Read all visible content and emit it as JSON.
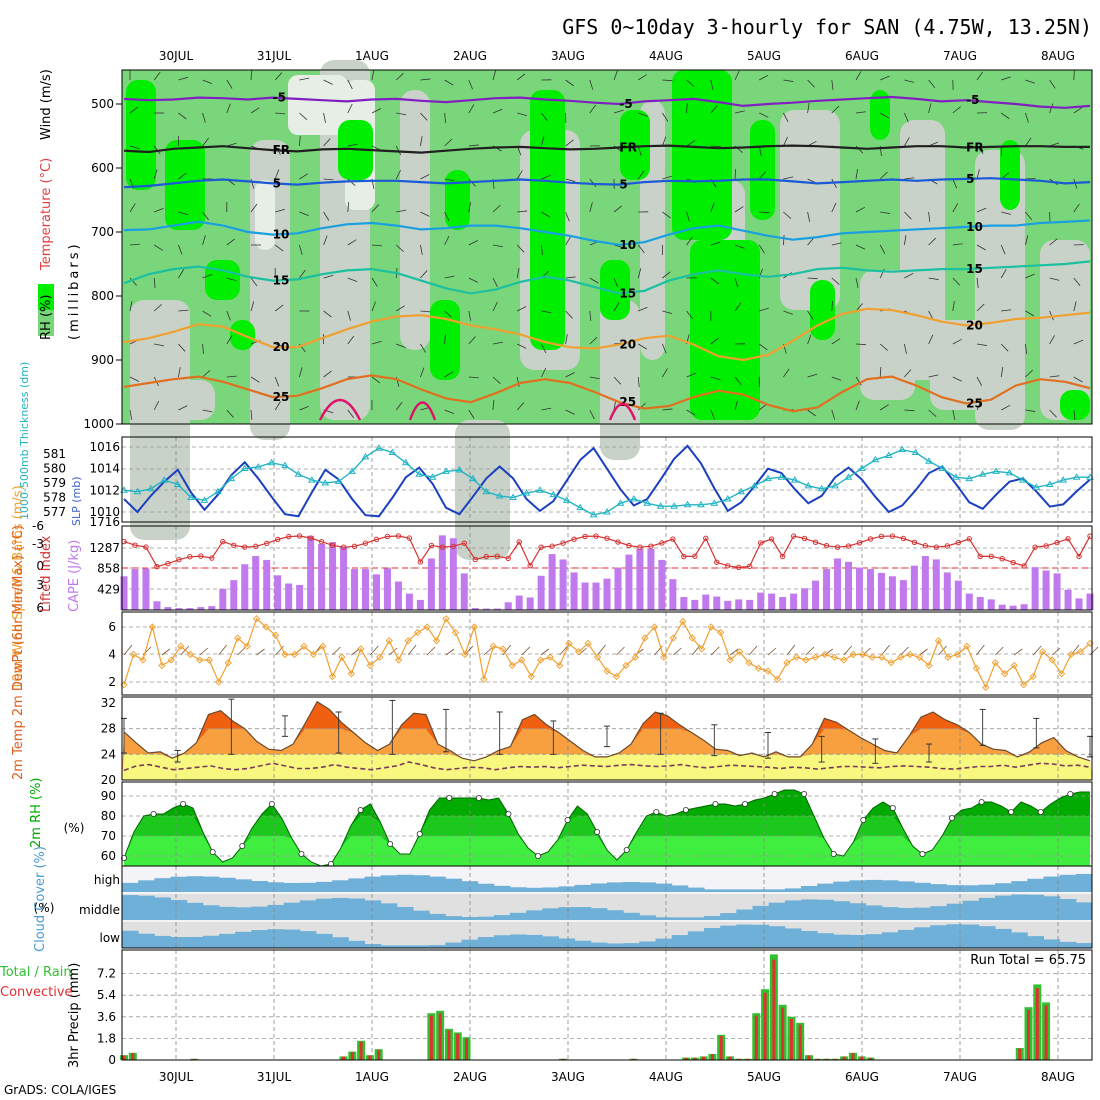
{
  "title": "GFS 0~10day 3-hourly for SAN (4.75W, 13.25N)",
  "credit": "GrADS: COLA/IGES",
  "dates": [
    "30JUL",
    "31JUL",
    "1AUG",
    "2AUG",
    "3AUG",
    "4AUG",
    "5AUG",
    "6AUG",
    "7AUG",
    "8AUG"
  ],
  "colors": {
    "green_bright": "#00ee00",
    "green_mid": "#7ad67a",
    "grey": "#c8d2c8",
    "grey_light": "#e6eee6",
    "slp": "#1a3fbf",
    "thick": "#22b4c4",
    "lifted": "#d63232",
    "cape": "#c07aee",
    "wind": "#f0a030",
    "temp_dark": "#f06010",
    "temp_mid": "#f8a040",
    "temp_light": "#f8f880",
    "rh_dark": "#00aa00",
    "rh_light": "#40ee40",
    "cloud": "#6fb0d8",
    "cloud_bg": "#e0e0e0",
    "precip_green": "#30c030",
    "precip_red": "#e03030"
  },
  "chart_data": [
    {
      "type": "heatmap",
      "panel": "upper-air",
      "ylabel_parts": [
        "RH (%)",
        "Temperature (°C)",
        "Wind (m/s)"
      ],
      "y_axis_label": "(millibars)",
      "yticks": [
        500,
        600,
        700,
        800,
        900,
        1000
      ],
      "ylim": [
        1000,
        450
      ],
      "contours": [
        {
          "label": "-5",
          "color": "#8020c0",
          "p": [
            492,
            494,
            493,
            490,
            491,
            493,
            490,
            492,
            494,
            496,
            493,
            492,
            495,
            497,
            494,
            491,
            490,
            493,
            495,
            498,
            500,
            496,
            494,
            492,
            497,
            503,
            500,
            498,
            495,
            493,
            491,
            489,
            492,
            496,
            494,
            497,
            500,
            504,
            506,
            503
          ]
        },
        {
          "label": "FR",
          "color": "#202020",
          "p": [
            573,
            575,
            570,
            568,
            566,
            569,
            572,
            574,
            571,
            570,
            572,
            574,
            576,
            573,
            570,
            568,
            567,
            569,
            571,
            570,
            568,
            566,
            565,
            567,
            569,
            568,
            566,
            565,
            566,
            568,
            570,
            568,
            566,
            566,
            568,
            567,
            566,
            566,
            567,
            567
          ]
        },
        {
          "label": "5",
          "color": "#1a5ad6",
          "p": [
            630,
            628,
            624,
            620,
            618,
            621,
            624,
            626,
            623,
            621,
            620,
            620,
            622,
            624,
            622,
            620,
            618,
            620,
            623,
            625,
            626,
            622,
            620,
            621,
            620,
            618,
            618,
            621,
            624,
            622,
            620,
            618,
            620,
            618,
            617,
            616,
            618,
            620,
            624,
            622
          ]
        },
        {
          "label": "10",
          "color": "#1aa0e0",
          "p": [
            697,
            696,
            690,
            684,
            690,
            700,
            704,
            702,
            694,
            688,
            686,
            690,
            696,
            694,
            690,
            690,
            694,
            700,
            706,
            714,
            720,
            716,
            704,
            694,
            690,
            698,
            706,
            712,
            708,
            702,
            700,
            698,
            696,
            694,
            692,
            690,
            690,
            686,
            684,
            682
          ]
        },
        {
          "label": "15",
          "color": "#1ac0a0",
          "p": [
            780,
            766,
            758,
            754,
            760,
            770,
            776,
            774,
            766,
            760,
            758,
            764,
            776,
            788,
            796,
            790,
            778,
            770,
            776,
            786,
            796,
            792,
            776,
            766,
            760,
            766,
            770,
            766,
            758,
            756,
            760,
            762,
            760,
            758,
            758,
            756,
            754,
            752,
            750,
            746
          ]
        },
        {
          "label": "20",
          "color": "#f0a030",
          "p": [
            872,
            866,
            856,
            844,
            848,
            864,
            880,
            880,
            866,
            852,
            840,
            832,
            830,
            836,
            846,
            852,
            860,
            872,
            880,
            882,
            876,
            866,
            862,
            876,
            894,
            900,
            892,
            870,
            846,
            828,
            820,
            822,
            830,
            840,
            846,
            842,
            836,
            834,
            830,
            826
          ]
        },
        {
          "label": "25",
          "color": "#e07020",
          "p": [
            942,
            936,
            930,
            926,
            934,
            946,
            958,
            956,
            944,
            930,
            924,
            930,
            946,
            960,
            966,
            952,
            936,
            930,
            936,
            950,
            966,
            976,
            972,
            958,
            948,
            954,
            970,
            980,
            974,
            950,
            930,
            926,
            940,
            958,
            968,
            962,
            940,
            930,
            934,
            944
          ]
        }
      ]
    },
    {
      "type": "line",
      "panel": "thickness-slp",
      "ylabel_left": "1000-500mb Thickness (dm)",
      "ylabel_right": "SLP (mb)",
      "left_ticks": [
        577,
        578,
        579,
        580,
        581
      ],
      "right_ticks": [
        1010,
        1012,
        1014,
        1016
      ],
      "series": [
        {
          "name": "SLP (mb)",
          "axis": "right",
          "values": [
            1011.2,
            1010.0,
            1011.5,
            1012.8,
            1013.9,
            1011.8,
            1010.2,
            1011.6,
            1013.4,
            1014.6,
            1013.1,
            1011.4,
            1009.8,
            1009.6,
            1011.8,
            1013.9,
            1013.0,
            1011.2,
            1009.7,
            1009.6,
            1011.3,
            1013.2,
            1014.1,
            1012.6,
            1010.4,
            1009.8,
            1011.4,
            1013.1,
            1014.2,
            1013.1,
            1011.2,
            1010.1,
            1011.0,
            1012.9,
            1014.8,
            1015.9,
            1014.0,
            1012.1,
            1010.6,
            1011.2,
            1013.0,
            1014.9,
            1016.1,
            1014.5,
            1012.2,
            1010.1,
            1010.9,
            1012.4,
            1014.0,
            1013.6,
            1012.1,
            1010.8,
            1011.5,
            1013.2,
            1014.1,
            1013.0,
            1011.4,
            1010.0,
            1010.6,
            1012.0,
            1013.6,
            1014.2,
            1012.6,
            1010.9,
            1010.3,
            1011.6,
            1012.8,
            1013.1,
            1011.9,
            1010.5,
            1010.7,
            1011.9,
            1013.0
          ]
        },
        {
          "name": "Thickness (dm)",
          "axis": "left",
          "values": [
            578.5,
            578.4,
            578.6,
            579.2,
            578.9,
            578.0,
            577.8,
            578.4,
            579.3,
            580.0,
            580.1,
            580.4,
            580.2,
            579.6,
            579.2,
            579.0,
            579.1,
            579.8,
            580.8,
            581.4,
            581.1,
            580.4,
            579.6,
            579.4,
            579.8,
            579.9,
            579.3,
            578.4,
            578.1,
            578.0,
            578.3,
            578.5,
            578.2,
            577.8,
            577.3,
            576.8,
            577.0,
            577.6,
            577.9,
            577.6,
            577.4,
            577.4,
            577.5,
            577.5,
            577.6,
            577.9,
            578.4,
            578.8,
            579.3,
            579.4,
            579.2,
            578.8,
            578.6,
            578.8,
            579.4,
            580.0,
            580.6,
            580.9,
            581.3,
            581.1,
            580.5,
            580.0,
            579.4,
            579.3,
            579.6,
            579.8,
            579.7,
            579.2,
            578.7,
            578.9,
            579.2,
            579.4,
            579.4
          ]
        }
      ]
    },
    {
      "type": "bar",
      "panel": "cape-lifted-index",
      "ylabel_left": "Lifted Index",
      "ylabel_right": "CAPE (J/kg)",
      "left_ticks": [
        -6,
        -3,
        0,
        3,
        6
      ],
      "right_ticks": [
        429,
        858,
        1287
      ],
      "cape": [
        700,
        850,
        860,
        180,
        60,
        40,
        40,
        60,
        80,
        440,
        620,
        950,
        1120,
        1040,
        720,
        550,
        520,
        1540,
        1370,
        1410,
        1300,
        850,
        850,
        740,
        860,
        590,
        340,
        210,
        1070,
        1550,
        1490,
        760,
        40,
        30,
        30,
        160,
        300,
        260,
        710,
        1160,
        1050,
        780,
        570,
        570,
        650,
        880,
        1150,
        1270,
        1270,
        1040,
        640,
        270,
        210,
        320,
        280,
        190,
        220,
        210,
        360,
        340,
        270,
        340,
        450,
        610,
        850,
        1070,
        1000,
        880,
        850,
        770,
        700,
        620,
        920,
        1120,
        1050,
        780,
        610,
        340,
        270,
        220,
        110,
        90,
        120,
        890,
        820,
        760,
        420,
        240,
        340
      ]
    },
    {
      "type": "line",
      "panel": "10m-wind",
      "ylabel": "10m Wind Speed & Barbs (m/s)",
      "yticks": [
        2,
        4,
        6
      ],
      "values": [
        1.8,
        4.0,
        3.6,
        6.0,
        3.2,
        3.6,
        4.6,
        4.0,
        3.6,
        3.6,
        2.0,
        3.4,
        5.2,
        4.6,
        6.6,
        6.0,
        5.4,
        4.0,
        4.0,
        4.6,
        4.0,
        4.6,
        2.4,
        3.8,
        2.6,
        4.4,
        3.2,
        3.8,
        5.0,
        3.6,
        5.0,
        5.6,
        6.0,
        5.0,
        6.6,
        5.6,
        4.0,
        6.0,
        2.2,
        4.6,
        4.4,
        3.2,
        3.6,
        2.4,
        3.6,
        3.8,
        3.2,
        4.8,
        4.2,
        4.8,
        3.8,
        2.8,
        2.4,
        3.2,
        3.8,
        5.2,
        6.0,
        3.8,
        5.2,
        6.4,
        5.2,
        4.4,
        6.0,
        5.6,
        3.6,
        4.2,
        3.4,
        3.0,
        2.8,
        2.2,
        3.4,
        3.8,
        3.6,
        3.8,
        4.0,
        3.8,
        3.6,
        4.0,
        4.0,
        3.8,
        3.8,
        3.4,
        3.8,
        4.0,
        3.8,
        3.2,
        5.0,
        3.8,
        4.0,
        4.6,
        3.0,
        1.6,
        3.4,
        2.6,
        3.2,
        1.8,
        2.4,
        4.2,
        3.6,
        2.6,
        4.0,
        4.2,
        4.8
      ]
    },
    {
      "type": "area",
      "panel": "2m-temp",
      "ylabel": "2m Temp 2m DewPt (6hr Min/Max) (°C)",
      "yticks": [
        20,
        24,
        28,
        32
      ],
      "temp": [
        27.5,
        25.8,
        24.2,
        24.4,
        23.4,
        24.2,
        25.8,
        30.2,
        30.8,
        29.2,
        28.0,
        26.0,
        24.8,
        24.6,
        25.6,
        28.8,
        32.2,
        31.0,
        29.0,
        27.4,
        25.8,
        24.6,
        25.6,
        28.6,
        30.4,
        30.2,
        25.6,
        24.6,
        23.4,
        23.0,
        23.6,
        24.6,
        25.2,
        29.4,
        30.2,
        28.6,
        27.4,
        26.0,
        24.6,
        23.6,
        23.6,
        24.2,
        25.6,
        28.8,
        30.6,
        30.0,
        28.6,
        27.4,
        26.2,
        24.8,
        24.6,
        23.8,
        24.2,
        23.6,
        24.4,
        23.6,
        23.6,
        25.6,
        29.6,
        29.0,
        27.8,
        26.6,
        25.6,
        24.6,
        24.2,
        26.8,
        29.8,
        30.6,
        29.4,
        28.6,
        27.4,
        25.6,
        24.8,
        24.6,
        23.6,
        24.4,
        25.8,
        26.6,
        24.6,
        23.6,
        23.0
      ],
      "dewpt": [
        21.5,
        22.2,
        22.4,
        22.0,
        21.6,
        21.8,
        22.0,
        22.2,
        21.8,
        21.6,
        21.8,
        22.2,
        22.6,
        22.2,
        21.8,
        21.8,
        22.0,
        22.4,
        22.0,
        21.8,
        21.6,
        21.9,
        22.2,
        22.8,
        22.4,
        21.9,
        21.6,
        21.8,
        22.0,
        21.9,
        21.6,
        21.9,
        22.1,
        22.0,
        22.1,
        21.9,
        22.1,
        22.3,
        22.2,
        22.1,
        22.3,
        22.4,
        22.2,
        22.1,
        22.2,
        22.4,
        22.1,
        21.9,
        22.1,
        22.3,
        22.2,
        22.1,
        22.0,
        21.8,
        22.0,
        21.9,
        21.7,
        21.9,
        22.1,
        22.1,
        22.0,
        21.9,
        22.1,
        22.2,
        22.1,
        22.0,
        21.8,
        21.7,
        21.9,
        22.1,
        22.1,
        22.3,
        22.0,
        22.3,
        22.6,
        22.5,
        22.2,
        22.3,
        22.0
      ],
      "minmax": [
        [
          29.6,
          24.2
        ],
        [
          24.6,
          22.8
        ],
        [
          32.6,
          24.0
        ],
        [
          30.0,
          26.8
        ],
        [
          30.6,
          24.2
        ],
        [
          32.4,
          24.0
        ],
        [
          31.0,
          24.4
        ],
        [
          30.6,
          24.0
        ],
        [
          29.2,
          24.0
        ],
        [
          28.4,
          25.2
        ],
        [
          30.4,
          24.0
        ],
        [
          28.6,
          23.8
        ],
        [
          27.4,
          23.4
        ],
        [
          26.8,
          22.8
        ],
        [
          26.4,
          22.6
        ],
        [
          25.6,
          22.8
        ],
        [
          31.0,
          25.4
        ],
        [
          29.6,
          25.0
        ],
        [
          26.8,
          23.6
        ]
      ]
    },
    {
      "type": "area",
      "panel": "2m-rh",
      "ylabel": "2m RH (%)",
      "yticks": [
        60,
        70,
        80,
        90
      ],
      "values": [
        59,
        72,
        80,
        81,
        81,
        84,
        86,
        84,
        72,
        62,
        57,
        59,
        65,
        74,
        81,
        86,
        79,
        69,
        61,
        57,
        55,
        56,
        64,
        75,
        83,
        86,
        77,
        66,
        61,
        61,
        71,
        83,
        89,
        89,
        89,
        89,
        89,
        88,
        89,
        81,
        71,
        64,
        60,
        62,
        68,
        78,
        85,
        81,
        72,
        63,
        58,
        63,
        72,
        80,
        82,
        80,
        81,
        83,
        84,
        85,
        86,
        86,
        85,
        86,
        88,
        89,
        91,
        93,
        93,
        91,
        80,
        69,
        61,
        60,
        67,
        78,
        84,
        87,
        84,
        74,
        65,
        61,
        63,
        70,
        79,
        83,
        84,
        87,
        87,
        85,
        82,
        87,
        85,
        82,
        86,
        89,
        91,
        92,
        92
      ]
    },
    {
      "type": "heatmap",
      "panel": "cloud-cover",
      "ylabel": "Cloud Cover (%)",
      "levels": [
        "high",
        "middle",
        "low"
      ]
    },
    {
      "type": "bar",
      "panel": "precip",
      "ylabel": "3hr Precip (mm)",
      "legend_line1": "Total / Rain",
      "legend_line2": "Convective",
      "run_total": "Run Total = 65.75",
      "yticks": [
        0,
        1.8,
        3.6,
        5.4,
        7.2
      ],
      "total": [
        0.4,
        0.6,
        0,
        0,
        0,
        0,
        0,
        0,
        0.1,
        0,
        0,
        0,
        0,
        0,
        0,
        0,
        0,
        0,
        0,
        0,
        0,
        0,
        0,
        0,
        0,
        0.3,
        0.7,
        1.6,
        0.4,
        0.9,
        0,
        0,
        0,
        0,
        0,
        3.9,
        4.1,
        2.6,
        2.3,
        1.9,
        0,
        0,
        0,
        0,
        0,
        0,
        0,
        0,
        0,
        0,
        0.1,
        0,
        0,
        0,
        0,
        0,
        0,
        0,
        0.1,
        0,
        0,
        0,
        0,
        0,
        0.2,
        0.2,
        0.3,
        0.5,
        2.1,
        0.3,
        0.1,
        0.1,
        3.9,
        5.9,
        8.8,
        4.6,
        3.6,
        3.1,
        0.4,
        0.1,
        0.1,
        0.1,
        0.3,
        0.6,
        0.3,
        0.2,
        0,
        0,
        0,
        0,
        0,
        0,
        0,
        0,
        0,
        0,
        0,
        0,
        0,
        0,
        0,
        0,
        1,
        4.4,
        6.3,
        4.8,
        0,
        0,
        0,
        0,
        0
      ]
    }
  ]
}
